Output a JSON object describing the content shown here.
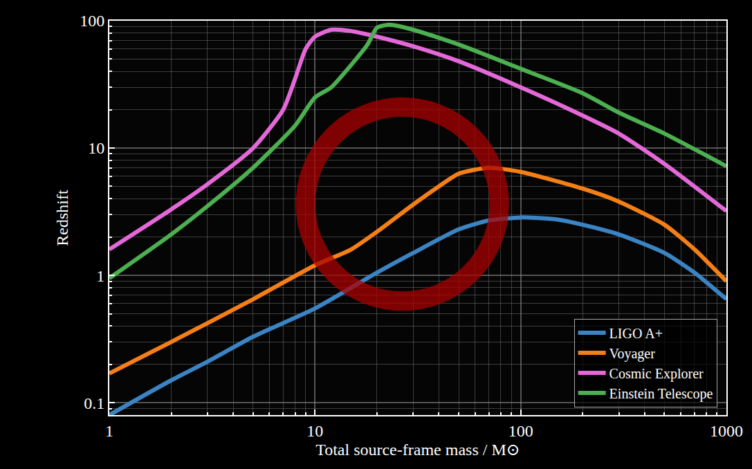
{
  "chart_data": {
    "type": "line",
    "x_label": "Total source-frame mass / M⊙",
    "y_label": "Redshift",
    "log": true,
    "grid": true,
    "legend": "lower right",
    "xlim": [
      1,
      1000
    ],
    "ylim": [
      0.08,
      100
    ],
    "xticks": [
      1,
      10,
      100,
      1000
    ],
    "yticks": [
      0.1,
      1,
      10,
      100
    ],
    "series": [
      {
        "name": "LIGO A+",
        "color": "#3b84c4",
        "x": [
          1,
          2,
          3,
          5,
          10,
          20,
          30,
          50,
          70,
          100,
          150,
          200,
          300,
          500,
          700,
          1000
        ],
        "values": [
          0.08,
          0.15,
          0.21,
          0.33,
          0.55,
          1.05,
          1.5,
          2.3,
          2.7,
          2.85,
          2.75,
          2.5,
          2.1,
          1.5,
          1.05,
          0.65
        ]
      },
      {
        "name": "Voyager",
        "color": "#f57f17",
        "x": [
          1,
          2,
          5,
          10,
          15,
          20,
          30,
          40,
          50,
          70,
          100,
          200,
          300,
          500,
          700,
          1000
        ],
        "values": [
          0.17,
          0.3,
          0.65,
          1.2,
          1.6,
          2.2,
          3.6,
          5.0,
          6.3,
          7.0,
          6.5,
          4.8,
          3.8,
          2.5,
          1.6,
          0.9
        ]
      },
      {
        "name": "Cosmic Explorer",
        "color": "#e468d8",
        "x": [
          1,
          2,
          3,
          5,
          7,
          8,
          9,
          10,
          12,
          15,
          20,
          30,
          50,
          100,
          200,
          300,
          500,
          1000
        ],
        "values": [
          1.6,
          3.3,
          5.2,
          10,
          20,
          35,
          60,
          75,
          85,
          83,
          75,
          63,
          48,
          30,
          18,
          13,
          7.5,
          3.2
        ]
      },
      {
        "name": "Einstein Telescope",
        "color": "#4caf50",
        "x": [
          1,
          2,
          3,
          5,
          8,
          10,
          12,
          15,
          18,
          20,
          23,
          30,
          50,
          100,
          200,
          300,
          500,
          1000
        ],
        "values": [
          0.95,
          2.1,
          3.5,
          7,
          15,
          25,
          30,
          45,
          65,
          88,
          93,
          85,
          65,
          42,
          27,
          19,
          13,
          7.2
        ]
      }
    ]
  }
}
